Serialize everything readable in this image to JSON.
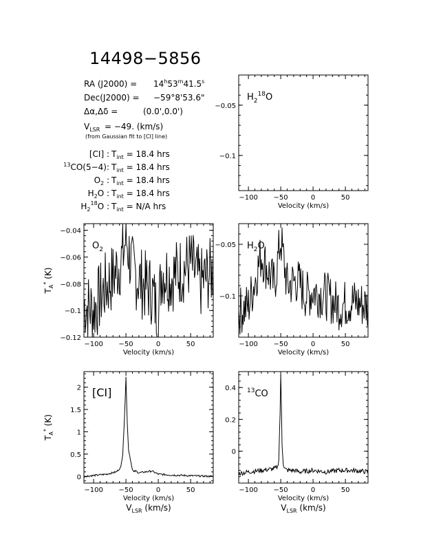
{
  "header": {
    "source": "14498−5856",
    "ra_label": "RA (J2000) =",
    "ra_h": "14",
    "ra_h_unit": "h",
    "ra_m": "53",
    "ra_m_unit": "m",
    "ra_s": "41.5",
    "ra_s_unit": "s",
    "dec_label": "Dec(J2000) =",
    "dec_value": "−59°8'53.6\"",
    "offset_label": "Δα,Δδ =",
    "offset_value": "(0.0',0.0')",
    "vlsr_v": "V",
    "vlsr_sub": "LSR",
    "vlsr_value": "= −49. (km/s)",
    "vlsr_note": "(from Gaussian fit to [CI] line)",
    "tint_rows": [
      {
        "line": "[CI] :",
        "value": "= 18.4 hrs"
      },
      {
        "line": "CO(5−4):",
        "sup": "13",
        "value": "= 18.4 hrs"
      },
      {
        "line": "O",
        "sub": "2",
        "tail": " :",
        "value": "= 18.4 hrs"
      },
      {
        "line": "H",
        "sub": "2",
        "tail": "O :",
        "value": "= 18.4 hrs"
      },
      {
        "line": "H",
        "sub": "2",
        "sup": "18",
        "tail": "O :",
        "value": "= N/A hrs"
      }
    ],
    "tint_label": "T",
    "tint_sub": "int"
  },
  "chart_data": [
    {
      "type": "line",
      "id": "h218o",
      "label_main": "H",
      "label_sub": "2",
      "label_sup": "18",
      "label_tail": "O",
      "xlabel": "Velocity (km/s)",
      "ylabel": "",
      "xlim": [
        -115,
        85
      ],
      "ylim": [
        -0.135,
        -0.02
      ],
      "xticks": [
        -100,
        -50,
        0,
        50
      ],
      "yticks": [
        -0.05,
        -0.1
      ],
      "yticklabels": [
        "−0.05",
        "−0.1"
      ],
      "series": []
    },
    {
      "type": "line",
      "id": "o2",
      "label_main": "O",
      "label_sub": "2",
      "xlabel": "Velocity (km/s)",
      "ylabel_main": "T",
      "ylabel_sub": "A",
      "ylabel_sup": "*",
      "ylabel_tail": " (K)",
      "xlim": [
        -115,
        85
      ],
      "ylim": [
        -0.12,
        -0.035
      ],
      "xticks": [
        -100,
        -50,
        0,
        50
      ],
      "yticks": [
        -0.04,
        -0.06,
        -0.08,
        -0.1,
        -0.12
      ],
      "yticklabels": [
        "−0.04",
        "−0.06",
        "−0.08",
        "−0.1",
        "−0.12"
      ],
      "noise": {
        "baseline": -0.078,
        "amplitude": 0.034,
        "spike_at": -50,
        "spike_value": -0.036
      },
      "series": [
        {
          "x": [
            -115,
            -100,
            -85,
            -70,
            -55,
            -50,
            -40,
            -25,
            -10,
            0,
            5,
            20,
            35,
            50,
            65,
            85
          ],
          "y": [
            -0.095,
            -0.1,
            -0.085,
            -0.075,
            -0.06,
            -0.045,
            -0.07,
            -0.08,
            -0.085,
            -0.105,
            -0.07,
            -0.075,
            -0.07,
            -0.065,
            -0.08,
            -0.07
          ]
        }
      ]
    },
    {
      "type": "line",
      "id": "h2o",
      "label_main": "H",
      "label_sub": "2",
      "label_tail": "O",
      "xlabel": "Velocity (km/s)",
      "ylabel": "",
      "xlim": [
        -115,
        85
      ],
      "ylim": [
        -0.14,
        -0.03
      ],
      "xticks": [
        -100,
        -50,
        0,
        50
      ],
      "yticks": [
        -0.05,
        -0.1
      ],
      "yticklabels": [
        "−0.05",
        "−0.1"
      ],
      "noise": {
        "baseline": -0.1,
        "amplitude": 0.03
      },
      "series": [
        {
          "x": [
            -115,
            -100,
            -80,
            -60,
            -50,
            -40,
            -25,
            -10,
            0,
            20,
            40,
            60,
            85
          ],
          "y": [
            -0.115,
            -0.11,
            -0.06,
            -0.09,
            -0.045,
            -0.09,
            -0.085,
            -0.1,
            -0.095,
            -0.1,
            -0.11,
            -0.105,
            -0.11
          ]
        }
      ]
    },
    {
      "type": "line",
      "id": "ci",
      "label_main": "[CI]",
      "xlabel": "Velocity (km/s)",
      "xlabel2_main": "V",
      "xlabel2_sub": "LSR",
      "xlabel2_tail": " (km/s)",
      "ylabel_main": "T",
      "ylabel_sub": "A",
      "ylabel_sup": "*",
      "ylabel_tail": " (K)",
      "xlim": [
        -115,
        85
      ],
      "ylim": [
        -0.15,
        2.35
      ],
      "xticks": [
        -100,
        -50,
        0,
        50
      ],
      "yticks": [
        0,
        0.5,
        1,
        1.5,
        2
      ],
      "yticklabels": [
        "0",
        "0.5",
        "1",
        "1.5",
        "2"
      ],
      "series": [
        {
          "x": [
            -115,
            -100,
            -80,
            -65,
            -58,
            -55,
            -52,
            -50,
            -48,
            -46,
            -44,
            -42,
            -40,
            -38,
            -35,
            -30,
            -20,
            -10,
            0,
            20,
            40,
            60,
            85
          ],
          "y": [
            0.0,
            0.02,
            0.05,
            0.1,
            0.2,
            0.5,
            1.4,
            2.25,
            1.2,
            0.6,
            0.45,
            0.3,
            0.15,
            0.1,
            0.12,
            0.08,
            0.1,
            0.12,
            0.05,
            0.03,
            0.02,
            0.01,
            0.0
          ]
        }
      ]
    },
    {
      "type": "line",
      "id": "13co",
      "label_main": "CO",
      "label_sup": "13",
      "xlabel": "Velocity (km/s)",
      "xlabel2_main": "V",
      "xlabel2_sub": "LSR",
      "xlabel2_tail": " (km/s)",
      "ylabel": "",
      "xlim": [
        -115,
        85
      ],
      "ylim": [
        -0.2,
        0.5
      ],
      "xticks": [
        -100,
        -50,
        0,
        50
      ],
      "yticks": [
        0,
        0.2,
        0.4
      ],
      "yticklabels": [
        "0",
        "0.2",
        "0.4"
      ],
      "series": [
        {
          "x": [
            -115,
            -100,
            -80,
            -60,
            -55,
            -53,
            -51,
            -50,
            -49,
            -48,
            -46,
            -44,
            -40,
            -30,
            -20,
            0,
            20,
            40,
            60,
            85
          ],
          "y": [
            -0.14,
            -0.13,
            -0.12,
            -0.11,
            -0.1,
            -0.05,
            0.25,
            0.47,
            0.3,
            0.05,
            -0.08,
            -0.11,
            -0.12,
            -0.12,
            -0.13,
            -0.12,
            -0.13,
            -0.12,
            -0.12,
            -0.13
          ]
        }
      ]
    }
  ]
}
